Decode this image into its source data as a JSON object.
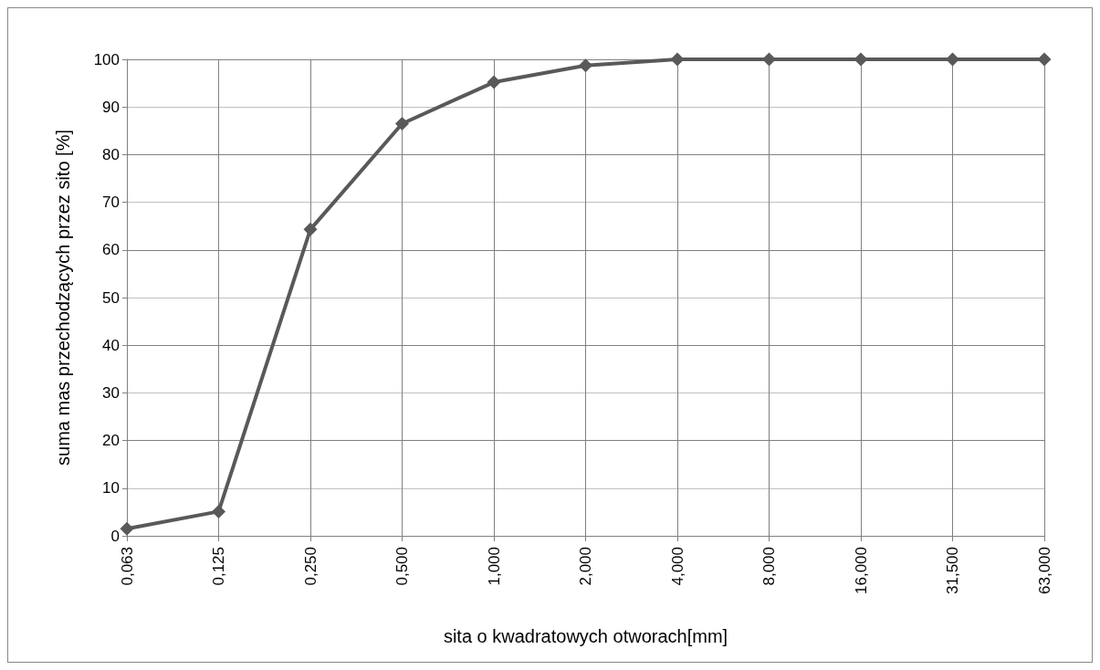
{
  "chart_data": {
    "type": "line",
    "xlabel": "sita o kwadratowych otworach[mm]",
    "ylabel": "suma mas przechodzących przez sito [%]",
    "categories": [
      "0,063",
      "0,125",
      "0,250",
      "0,500",
      "1,000",
      "2,000",
      "4,000",
      "8,000",
      "16,000",
      "31,500",
      "63,000"
    ],
    "series": [
      {
        "color": "#595959",
        "values": [
          1.5,
          5.1,
          64.3,
          86.5,
          95.2,
          98.7,
          100,
          100,
          100,
          100,
          100
        ]
      }
    ],
    "ylim": [
      0,
      100
    ],
    "yticks": [
      0,
      10,
      20,
      30,
      40,
      50,
      60,
      70,
      80,
      90,
      100
    ],
    "grid": true,
    "marker": "diamond",
    "line_style": "solid"
  }
}
